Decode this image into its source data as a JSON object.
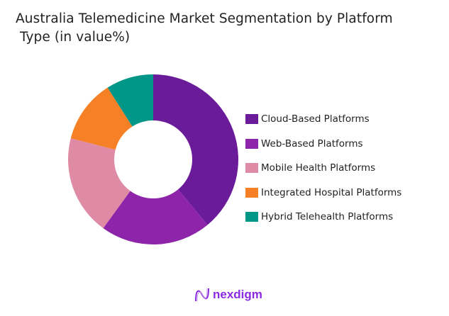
{
  "chart_data": {
    "type": "pie",
    "variant": "donut",
    "title": "Australia Telemedicine Market Segmentation by Platform\n Type (in value%)",
    "categories": [
      "Cloud-Based Platforms",
      "Web-Based Platforms",
      "Mobile Health Platforms",
      "Integrated Hospital Platforms",
      "Hybrid Telehealth Platforms"
    ],
    "values": [
      39,
      21,
      19,
      12,
      9
    ],
    "colors": [
      "#6a1b9a",
      "#8e24aa",
      "#e08ba6",
      "#f58025",
      "#009688"
    ],
    "legend_position": "right"
  },
  "branding": {
    "logo_text": "nexdigm",
    "logo_color": "#8a2be2"
  }
}
